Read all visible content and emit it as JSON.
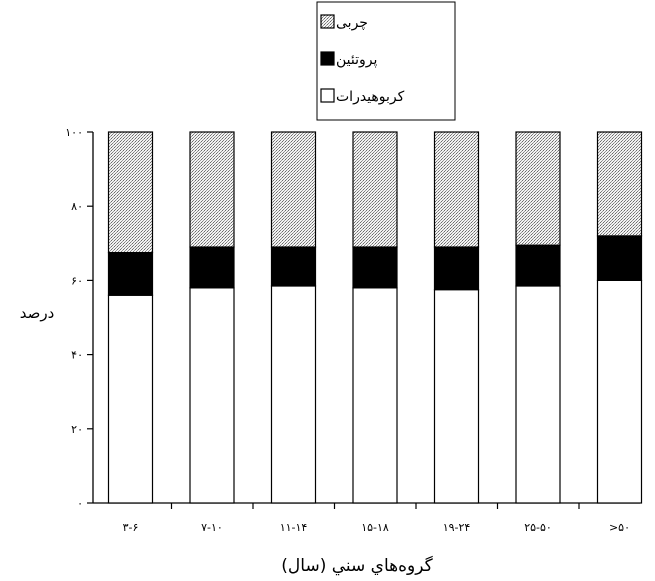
{
  "chart_data": {
    "type": "bar",
    "stacked": true,
    "categories": [
      "۳-۶",
      "۷-۱۰",
      "۱۱-۱۴",
      "۱۵-۱۸",
      "۱۹-۲۴",
      "۲۵-۵۰",
      ">۵۰"
    ],
    "series": [
      {
        "name": "کربوهیدرات",
        "values": [
          56,
          58,
          58.5,
          58,
          57.5,
          58.5,
          60
        ],
        "pattern": "white"
      },
      {
        "name": "پروتئین",
        "values": [
          11.5,
          11,
          10.5,
          11,
          11.5,
          11,
          12
        ],
        "pattern": "black"
      },
      {
        "name": "چربی",
        "values": [
          32.5,
          31,
          31,
          31,
          31,
          30.5,
          28
        ],
        "pattern": "dotted-gray"
      }
    ],
    "xlabel": "گروه‌هاي سني (سال)",
    "ylabel": "درصد",
    "ylim": [
      0,
      100
    ],
    "yticks": [
      0,
      20,
      40,
      60,
      80,
      100
    ],
    "ytick_labels": [
      "۰",
      "۲۰",
      "۴۰",
      "۶۰",
      "۸۰",
      "۱۰۰"
    ],
    "legend_position": "top-center",
    "grid": false
  }
}
